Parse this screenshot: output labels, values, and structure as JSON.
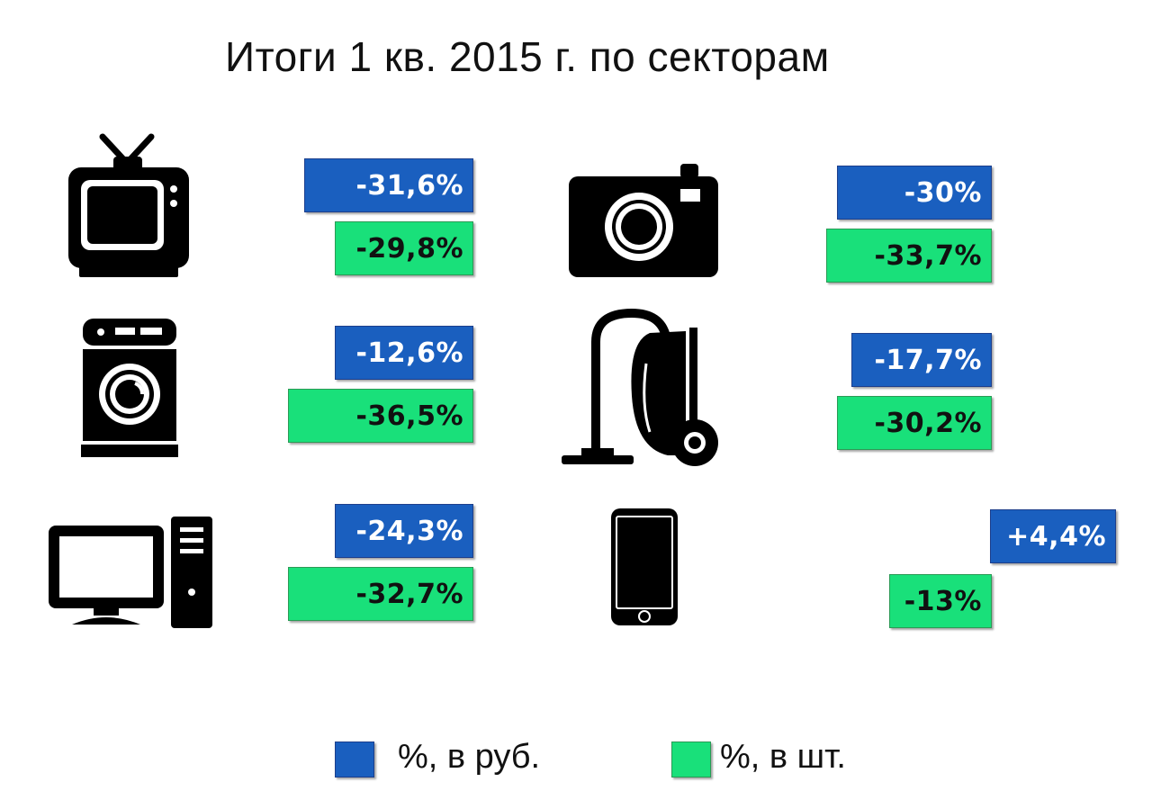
{
  "title": "Итоги 1 кв. 2015 г. по секторам",
  "colors": {
    "rub": "#1a5fbf",
    "pcs": "#19e07a"
  },
  "chart_data": {
    "type": "bar",
    "title": "Итоги 1 кв. 2015 г. по секторам",
    "categories": [
      "tv-icon",
      "camera-icon",
      "washing-machine-icon",
      "vacuum-cleaner-icon",
      "computer-icon",
      "smartphone-icon"
    ],
    "series": [
      {
        "name": "%, в руб.",
        "values": [
          -31.6,
          -30,
          -12.6,
          -17.7,
          -24.3,
          4.4
        ],
        "labels": [
          "-31,6%",
          "-30%",
          "-12,6%",
          "-17,7%",
          "-24,3%",
          "+4,4%"
        ]
      },
      {
        "name": "%, в шт.",
        "values": [
          -29.8,
          -33.7,
          -36.5,
          -30.2,
          -32.7,
          -13
        ],
        "labels": [
          "-29,8%",
          "-33,7%",
          "-36,5%",
          "-30,2%",
          "-32,7%",
          "-13%"
        ]
      }
    ]
  },
  "legend": {
    "rub_label": "%, в руб.",
    "pcs_label": "%, в шт."
  }
}
